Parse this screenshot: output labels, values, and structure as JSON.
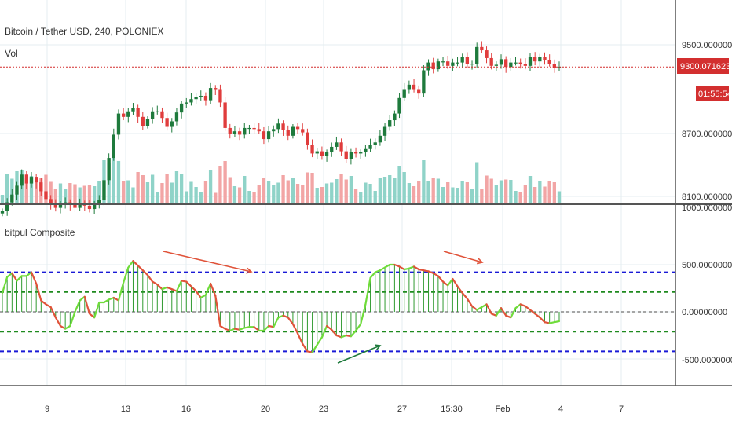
{
  "header": {
    "symbol_title": "Bitcoin / Tether USD, 240, POLONIEX",
    "vol_label": "Vol",
    "indicator_title": "bitpul Composite"
  },
  "price_axis": {
    "ticks": [
      "9500.00000000",
      "8700.00000000",
      "8100.00000000"
    ],
    "current_price": "9300.07162386",
    "countdown": "01:55:54"
  },
  "indicator_axis": {
    "ticks": [
      "1000.00000000",
      "500.00000000",
      "0.00000000",
      "-500.00000000"
    ]
  },
  "time_axis": {
    "ticks": [
      "9",
      "13",
      "16",
      "20",
      "23",
      "27",
      "15:30",
      "Feb",
      "4",
      "7"
    ]
  },
  "colors": {
    "up": "#1e7a3c",
    "down": "#e03c3c",
    "vol_up": "#8fd3c8",
    "vol_down": "#f2a5a5",
    "price_line": "#d32f2f",
    "level_outer": "#1a1ad6",
    "level_inner": "#1e8a1e",
    "zero_line": "#888888",
    "osc_green": "#6fdc3a",
    "osc_red": "#e0533a",
    "hist": "#2e9a2e",
    "grid": "#e4eef0"
  },
  "chart_data": [
    {
      "type": "candlestick",
      "title": "Bitcoin / Tether USD, 240, POLONIEX",
      "y_ticks": [
        8100,
        8700,
        9500
      ],
      "current_price": 9300.07162386,
      "x_ticks": [
        "9",
        "13",
        "16",
        "20",
        "23",
        "27",
        "15:30",
        "Feb",
        "4",
        "7"
      ],
      "close": [
        8000,
        8080,
        8150,
        8230,
        8330,
        8250,
        8310,
        8260,
        8180,
        8110,
        8060,
        8030,
        8060,
        8080,
        8060,
        8030,
        8060,
        8050,
        8020,
        8060,
        8100,
        8280,
        8480,
        8690,
        8880,
        8850,
        8900,
        8930,
        8850,
        8770,
        8830,
        8900,
        8900,
        8840,
        8760,
        8810,
        8890,
        8970,
        8980,
        9010,
        9030,
        9040,
        9000,
        9110,
        9100,
        8980,
        8750,
        8700,
        8720,
        8690,
        8750,
        8750,
        8740,
        8720,
        8650,
        8720,
        8740,
        8790,
        8730,
        8680,
        8760,
        8740,
        8710,
        8600,
        8520,
        8540,
        8500,
        8530,
        8580,
        8620,
        8540,
        8470,
        8530,
        8520,
        8530,
        8560,
        8600,
        8620,
        8680,
        8760,
        8820,
        8880,
        9020,
        9100,
        9140,
        9100,
        9060,
        9270,
        9340,
        9280,
        9350,
        9350,
        9310,
        9340,
        9340,
        9390,
        9330,
        9330,
        9480,
        9450,
        9380,
        9310,
        9320,
        9370,
        9300,
        9340,
        9340,
        9330,
        9310,
        9390,
        9350,
        9390,
        9360,
        9330,
        9290,
        9300
      ],
      "volume_ticks": [],
      "indicator": {
        "name": "bitpul Composite",
        "y_ticks": [
          -500,
          0,
          500,
          1000
        ],
        "levels": [
          -420,
          -210,
          210,
          420,
          0
        ],
        "values": [
          200,
          370,
          410,
          330,
          380,
          380,
          420,
          300,
          120,
          80,
          50,
          -60,
          -150,
          -180,
          -150,
          0,
          120,
          160,
          -20,
          -60,
          100,
          100,
          130,
          150,
          120,
          310,
          470,
          540,
          490,
          440,
          390,
          320,
          290,
          240,
          260,
          240,
          220,
          330,
          320,
          270,
          220,
          150,
          180,
          300,
          170,
          -150,
          -180,
          -200,
          -180,
          -190,
          -170,
          -160,
          -160,
          -200,
          -200,
          -150,
          -160,
          -60,
          -40,
          -60,
          -130,
          -230,
          -340,
          -420,
          -430,
          -350,
          -270,
          -150,
          -190,
          -250,
          -270,
          -250,
          -260,
          -200,
          -130,
          80,
          360,
          420,
          440,
          470,
          500,
          500,
          480,
          450,
          460,
          480,
          450,
          440,
          430,
          410,
          380,
          320,
          280,
          350,
          270,
          200,
          140,
          60,
          20,
          50,
          80,
          -20,
          -40,
          40,
          -40,
          -60,
          40,
          80,
          60,
          20,
          -20,
          -60,
          -110,
          -120,
          -110,
          -100
        ]
      }
    }
  ]
}
